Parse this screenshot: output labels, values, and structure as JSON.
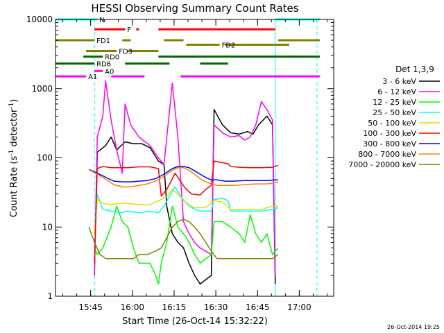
{
  "chart_data": {
    "type": "line",
    "title": "HESSI Observing Summary Count Rates",
    "xlabel": "Start Time (26-Oct-14 15:32:22)",
    "ylabel_main": "Count Rate (s",
    "ylabel_sup1": "-1",
    "ylabel_mid": " detector",
    "ylabel_sup2": "-1",
    "ylabel_end": ")",
    "y_scale": "log",
    "ylim": [
      1,
      10000
    ],
    "xlim_minutes": [
      0,
      100
    ],
    "x_ticks": [
      {
        "minute": 12.63,
        "label": "15:45"
      },
      {
        "minute": 27.63,
        "label": "16:00"
      },
      {
        "minute": 42.63,
        "label": "16:15"
      },
      {
        "minute": 57.63,
        "label": "16:30"
      },
      {
        "minute": 72.63,
        "label": "16:45"
      },
      {
        "minute": 87.63,
        "label": "17:00"
      }
    ],
    "y_ticks": [
      {
        "value": 1,
        "label": "1"
      },
      {
        "value": 10,
        "label": "10"
      },
      {
        "value": 100,
        "label": "100"
      },
      {
        "value": 1000,
        "label": "1000"
      },
      {
        "value": 10000,
        "label": "10000"
      }
    ],
    "legend": {
      "title": "Det 1,3,9",
      "placement": "right"
    },
    "series": [
      {
        "name": "3 - 6 keV",
        "color": "#000000",
        "points": [
          [
            14,
            2
          ],
          [
            15,
            120
          ],
          [
            18,
            150
          ],
          [
            20,
            200
          ],
          [
            22,
            130
          ],
          [
            25,
            170
          ],
          [
            28,
            160
          ],
          [
            31,
            160
          ],
          [
            34,
            140
          ],
          [
            37,
            90
          ],
          [
            39,
            80
          ],
          [
            40,
            20
          ],
          [
            42,
            8
          ],
          [
            44,
            6
          ],
          [
            46,
            5
          ],
          [
            48,
            3
          ],
          [
            50,
            2
          ],
          [
            52,
            1.5
          ],
          [
            56,
            2
          ],
          [
            57,
            500
          ],
          [
            60,
            300
          ],
          [
            63,
            230
          ],
          [
            66,
            220
          ],
          [
            69,
            240
          ],
          [
            71,
            220
          ],
          [
            73,
            300
          ],
          [
            76,
            400
          ],
          [
            78,
            300
          ],
          [
            79,
            1.5
          ]
        ]
      },
      {
        "name": "6 - 12 keV",
        "color": "#ff00ff",
        "points": [
          [
            14,
            2
          ],
          [
            15,
            200
          ],
          [
            17,
            400
          ],
          [
            18,
            1300
          ],
          [
            20,
            350
          ],
          [
            22,
            130
          ],
          [
            24,
            60
          ],
          [
            25,
            600
          ],
          [
            27,
            300
          ],
          [
            30,
            200
          ],
          [
            34,
            150
          ],
          [
            37,
            100
          ],
          [
            39,
            80
          ],
          [
            42,
            1200
          ],
          [
            44,
            200
          ],
          [
            46,
            12
          ],
          [
            48,
            8
          ],
          [
            50,
            6
          ],
          [
            52,
            5
          ],
          [
            56,
            4
          ],
          [
            57,
            300
          ],
          [
            60,
            230
          ],
          [
            63,
            200
          ],
          [
            66,
            210
          ],
          [
            68,
            180
          ],
          [
            70,
            200
          ],
          [
            72,
            300
          ],
          [
            74,
            650
          ],
          [
            76,
            500
          ],
          [
            78,
            350
          ],
          [
            79,
            2
          ]
        ]
      },
      {
        "name": "12 - 25 keV",
        "color": "#00ff00",
        "points": [
          [
            14,
            5
          ],
          [
            15,
            4
          ],
          [
            17,
            5
          ],
          [
            20,
            10
          ],
          [
            22,
            20
          ],
          [
            24,
            12
          ],
          [
            26,
            10
          ],
          [
            28,
            5
          ],
          [
            30,
            3
          ],
          [
            32,
            3
          ],
          [
            34,
            3
          ],
          [
            36,
            2
          ],
          [
            37,
            1.5
          ],
          [
            38,
            3
          ],
          [
            40,
            6
          ],
          [
            42,
            20
          ],
          [
            44,
            10
          ],
          [
            46,
            8
          ],
          [
            48,
            6
          ],
          [
            50,
            4
          ],
          [
            52,
            3
          ],
          [
            56,
            4
          ],
          [
            57,
            12
          ],
          [
            60,
            12
          ],
          [
            63,
            10
          ],
          [
            66,
            8
          ],
          [
            68,
            6
          ],
          [
            70,
            15
          ],
          [
            72,
            8
          ],
          [
            74,
            6
          ],
          [
            76,
            8
          ],
          [
            78,
            4
          ],
          [
            80,
            5
          ]
        ]
      },
      {
        "name": "25 - 50 keV",
        "color": "#00ffff",
        "points": [
          [
            14,
            8
          ],
          [
            15,
            30
          ],
          [
            17,
            18
          ],
          [
            20,
            17
          ],
          [
            23,
            16
          ],
          [
            26,
            17
          ],
          [
            30,
            16
          ],
          [
            34,
            17
          ],
          [
            37,
            16
          ],
          [
            39,
            20
          ],
          [
            41,
            28
          ],
          [
            43,
            38
          ],
          [
            45,
            28
          ],
          [
            47,
            22
          ],
          [
            49,
            19
          ],
          [
            52,
            17
          ],
          [
            56,
            17
          ],
          [
            57,
            25
          ],
          [
            60,
            26
          ],
          [
            62,
            24
          ],
          [
            63,
            17
          ],
          [
            66,
            17
          ],
          [
            70,
            17
          ],
          [
            74,
            17
          ],
          [
            78,
            18
          ],
          [
            80,
            19
          ]
        ]
      },
      {
        "name": "50 - 100 keV",
        "color": "#e0e000",
        "points": [
          [
            14,
            8
          ],
          [
            15,
            25
          ],
          [
            17,
            22
          ],
          [
            20,
            21
          ],
          [
            23,
            22
          ],
          [
            26,
            22
          ],
          [
            30,
            21
          ],
          [
            34,
            21
          ],
          [
            37,
            24
          ],
          [
            40,
            28
          ],
          [
            42,
            35
          ],
          [
            44,
            30
          ],
          [
            46,
            24
          ],
          [
            48,
            21
          ],
          [
            50,
            19
          ],
          [
            54,
            19
          ],
          [
            57,
            24
          ],
          [
            60,
            23
          ],
          [
            63,
            18
          ],
          [
            66,
            18
          ],
          [
            70,
            18
          ],
          [
            74,
            18
          ],
          [
            78,
            20
          ],
          [
            80,
            20
          ]
        ]
      },
      {
        "name": "100 - 300 keV",
        "color": "#ff0000",
        "points": [
          [
            14,
            3
          ],
          [
            15,
            70
          ],
          [
            17,
            75
          ],
          [
            20,
            72
          ],
          [
            23,
            72
          ],
          [
            26,
            72
          ],
          [
            30,
            74
          ],
          [
            34,
            74
          ],
          [
            37,
            70
          ],
          [
            38,
            28
          ],
          [
            40,
            35
          ],
          [
            42,
            50
          ],
          [
            43,
            60
          ],
          [
            45,
            45
          ],
          [
            47,
            35
          ],
          [
            49,
            30
          ],
          [
            52,
            29
          ],
          [
            54,
            35
          ],
          [
            56,
            40
          ],
          [
            57,
            90
          ],
          [
            60,
            85
          ],
          [
            62,
            82
          ],
          [
            63,
            75
          ],
          [
            66,
            73
          ],
          [
            70,
            72
          ],
          [
            74,
            72
          ],
          [
            78,
            73
          ],
          [
            80,
            78
          ]
        ]
      },
      {
        "name": "300 - 800 keV",
        "color": "#0000ff",
        "points": [
          [
            12,
            68
          ],
          [
            15,
            60
          ],
          [
            17,
            55
          ],
          [
            19,
            50
          ],
          [
            21,
            46
          ],
          [
            24,
            45
          ],
          [
            27,
            45
          ],
          [
            30,
            46
          ],
          [
            33,
            47
          ],
          [
            36,
            50
          ],
          [
            39,
            58
          ],
          [
            42,
            70
          ],
          [
            44,
            75
          ],
          [
            46,
            75
          ],
          [
            48,
            72
          ],
          [
            50,
            65
          ],
          [
            52,
            58
          ],
          [
            54,
            52
          ],
          [
            56,
            48
          ],
          [
            58,
            48
          ],
          [
            61,
            46
          ],
          [
            64,
            46
          ],
          [
            68,
            47
          ],
          [
            72,
            47
          ],
          [
            76,
            47
          ],
          [
            79,
            48
          ],
          [
            80,
            48
          ]
        ]
      },
      {
        "name": "800 - 7000 keV",
        "color": "#ff8000",
        "points": [
          [
            12,
            67
          ],
          [
            15,
            58
          ],
          [
            17,
            52
          ],
          [
            19,
            46
          ],
          [
            21,
            41
          ],
          [
            24,
            38
          ],
          [
            27,
            38
          ],
          [
            30,
            40
          ],
          [
            33,
            42
          ],
          [
            36,
            46
          ],
          [
            39,
            54
          ],
          [
            42,
            66
          ],
          [
            44,
            72
          ],
          [
            46,
            72
          ],
          [
            48,
            66
          ],
          [
            50,
            58
          ],
          [
            52,
            50
          ],
          [
            54,
            45
          ],
          [
            56,
            42
          ],
          [
            58,
            40
          ],
          [
            61,
            40
          ],
          [
            64,
            40
          ],
          [
            68,
            41
          ],
          [
            72,
            42
          ],
          [
            76,
            42
          ],
          [
            79,
            44
          ],
          [
            80,
            45
          ]
        ]
      },
      {
        "name": "7000 - 20000 keV",
        "color": "#808000",
        "points": [
          [
            12,
            10
          ],
          [
            14,
            6
          ],
          [
            16,
            4
          ],
          [
            18,
            3.5
          ],
          [
            20,
            3.5
          ],
          [
            24,
            3.5
          ],
          [
            28,
            3.5
          ],
          [
            30,
            4
          ],
          [
            33,
            4
          ],
          [
            36,
            4.5
          ],
          [
            38,
            5
          ],
          [
            40,
            7
          ],
          [
            42,
            10
          ],
          [
            44,
            12
          ],
          [
            46,
            13
          ],
          [
            48,
            12
          ],
          [
            50,
            10
          ],
          [
            52,
            8
          ],
          [
            54,
            6
          ],
          [
            56,
            4.5
          ],
          [
            58,
            3.5
          ],
          [
            62,
            3.5
          ],
          [
            66,
            3.5
          ],
          [
            70,
            3.5
          ],
          [
            74,
            3.5
          ],
          [
            78,
            3.5
          ],
          [
            80,
            4
          ]
        ]
      }
    ],
    "vertical_markers": [
      {
        "minute": 0,
        "color": "#00ffff",
        "style": "solid"
      },
      {
        "minute": 14,
        "color": "#00ffff",
        "style": "dashed"
      },
      {
        "minute": 79,
        "color": "#00ffff",
        "style": "solid"
      },
      {
        "minute": 94,
        "color": "#00ffff",
        "style": "dashed"
      }
    ],
    "flag_bars": [
      {
        "label": "N",
        "color": "#00ffff",
        "level": 10000,
        "segments": [
          [
            0,
            15
          ],
          [
            79,
            95
          ]
        ]
      },
      {
        "label": "F",
        "color": "#ff0000",
        "level": 7200,
        "segments": [
          [
            14,
            25
          ],
          [
            29,
            30
          ],
          [
            37,
            79
          ]
        ]
      },
      {
        "label": "FD1",
        "color": "#808000",
        "level": 5000,
        "segments": [
          [
            0,
            14
          ],
          [
            24,
            27
          ],
          [
            39,
            46
          ],
          [
            80,
            95
          ]
        ]
      },
      {
        "label": "FD2",
        "color": "#808000",
        "level": 4300,
        "segments": [
          [
            47,
            59
          ],
          [
            61,
            84
          ]
        ]
      },
      {
        "label": "FD3",
        "color": "#808000",
        "level": 3500,
        "segments": [
          [
            11,
            22
          ],
          [
            26,
            37
          ]
        ]
      },
      {
        "label": "RD0",
        "color": "#006400",
        "level": 2900,
        "segments": [
          [
            10,
            17
          ],
          [
            37,
            59
          ],
          [
            59,
            95
          ]
        ]
      },
      {
        "label": "RD6",
        "color": "#006400",
        "level": 2300,
        "segments": [
          [
            0,
            14
          ],
          [
            25,
            41
          ],
          [
            52,
            62
          ]
        ]
      },
      {
        "label": "A0",
        "color": "#ff00ff",
        "level": 1800,
        "segments": [
          [
            14,
            17
          ]
        ]
      },
      {
        "label": "A1",
        "color": "#ff00ff",
        "level": 1500,
        "segments": [
          [
            0,
            11
          ],
          [
            20,
            32
          ],
          [
            45,
            95
          ]
        ]
      }
    ]
  },
  "footer": {
    "timestamp": "26-Oct-2014 19:25"
  }
}
